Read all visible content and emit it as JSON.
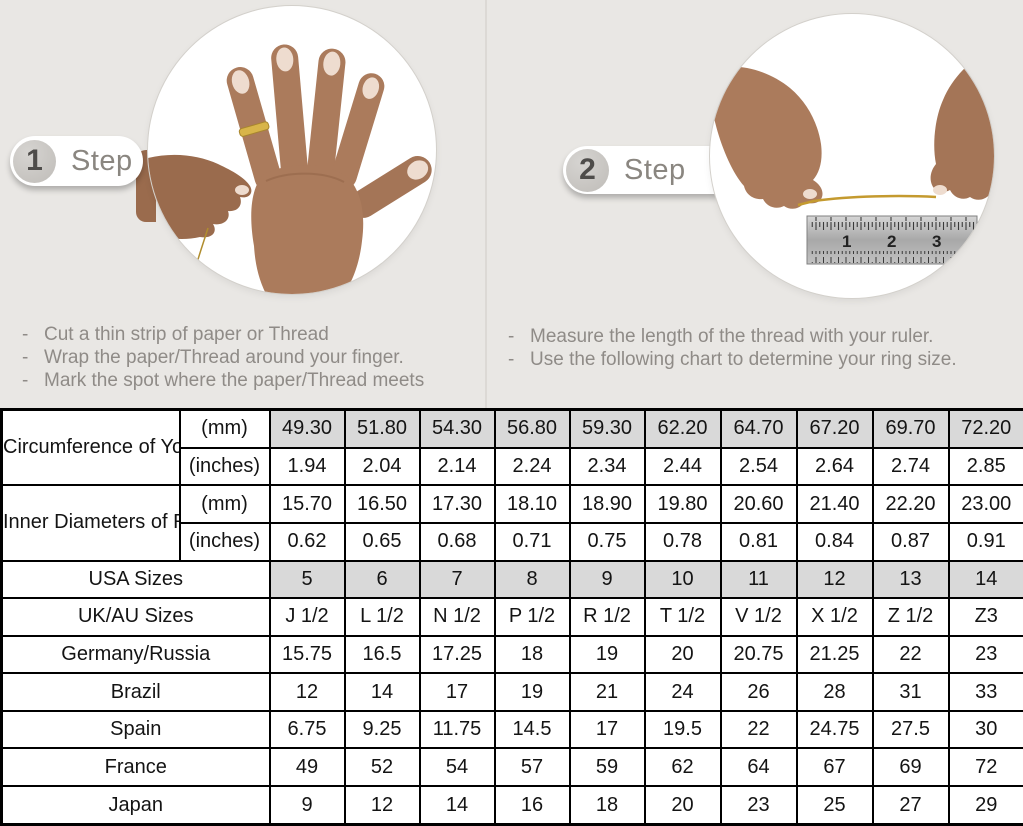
{
  "ui": {
    "bullet": "-"
  },
  "steps": [
    {
      "number": "1",
      "label": "Step",
      "photo": "hand-with-thread-around-ring-finger",
      "instructions": [
        "Cut a thin strip of paper or Thread",
        "Wrap the paper/Thread around your finger.",
        "Mark the spot where the paper/Thread meets"
      ]
    },
    {
      "number": "2",
      "label": "Step",
      "photo": "hands-measuring-thread-with-ruler",
      "ruler_numbers": [
        "1",
        "2",
        "3"
      ],
      "instructions": [
        "Measure the length of the thread with your ruler.",
        "Use the following chart to determine your ring size."
      ]
    }
  ],
  "table": {
    "rows": [
      {
        "group_label": "Circumference of Your Finger",
        "group_rowspan": 2,
        "unit": "(mm)",
        "shaded": true,
        "values": [
          "49.30",
          "51.80",
          "54.30",
          "56.80",
          "59.30",
          "62.20",
          "64.70",
          "67.20",
          "69.70",
          "72.20"
        ]
      },
      {
        "unit": "(inches)",
        "shaded": false,
        "values": [
          "1.94",
          "2.04",
          "2.14",
          "2.24",
          "2.34",
          "2.44",
          "2.54",
          "2.64",
          "2.74",
          "2.85"
        ]
      },
      {
        "group_label": "Inner Diameters of Rings",
        "group_rowspan": 2,
        "unit": "(mm)",
        "shaded": false,
        "values": [
          "15.70",
          "16.50",
          "17.30",
          "18.10",
          "18.90",
          "19.80",
          "20.60",
          "21.40",
          "22.20",
          "23.00"
        ]
      },
      {
        "unit": "(inches)",
        "shaded": false,
        "values": [
          "0.62",
          "0.65",
          "0.68",
          "0.71",
          "0.75",
          "0.78",
          "0.81",
          "0.84",
          "0.87",
          "0.91"
        ]
      },
      {
        "label": "USA Sizes",
        "shaded": true,
        "values": [
          "5",
          "6",
          "7",
          "8",
          "9",
          "10",
          "11",
          "12",
          "13",
          "14"
        ]
      },
      {
        "label": "UK/AU Sizes",
        "shaded": false,
        "values": [
          "J 1/2",
          "L 1/2",
          "N 1/2",
          "P 1/2",
          "R 1/2",
          "T 1/2",
          "V 1/2",
          "X 1/2",
          "Z 1/2",
          "Z3"
        ]
      },
      {
        "label": "Germany/Russia",
        "shaded": false,
        "values": [
          "15.75",
          "16.5",
          "17.25",
          "18",
          "19",
          "20",
          "20.75",
          "21.25",
          "22",
          "23"
        ]
      },
      {
        "label": "Brazil",
        "shaded": false,
        "values": [
          "12",
          "14",
          "17",
          "19",
          "21",
          "24",
          "26",
          "28",
          "31",
          "33"
        ]
      },
      {
        "label": "Spain",
        "shaded": false,
        "values": [
          "6.75",
          "9.25",
          "11.75",
          "14.5",
          "17",
          "19.5",
          "22",
          "24.75",
          "27.5",
          "30"
        ]
      },
      {
        "label": "France",
        "shaded": false,
        "values": [
          "49",
          "52",
          "54",
          "57",
          "59",
          "62",
          "64",
          "67",
          "69",
          "72"
        ]
      },
      {
        "label": "Japan",
        "shaded": false,
        "values": [
          "9",
          "12",
          "14",
          "16",
          "18",
          "20",
          "23",
          "25",
          "27",
          "29"
        ]
      }
    ]
  },
  "colors": {
    "background": "#e9e7e4",
    "shaded_cell": "#d9d9d9",
    "table_border": "#000000",
    "step_text": "#8a8680",
    "instruction_text": "#8f8b87",
    "thread_gold": "#c49a2f",
    "skin_tone": "#ab7b5c"
  }
}
